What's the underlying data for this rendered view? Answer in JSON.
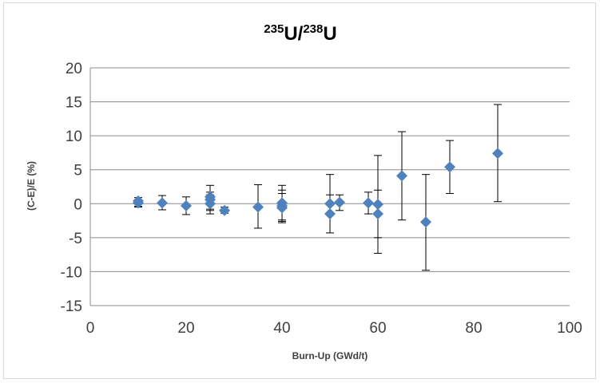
{
  "chart_data": {
    "type": "scatter",
    "title": {
      "sup1": "235",
      "base1": "U/",
      "sup2": "238",
      "base2": "U"
    },
    "xlabel": "Burn-Up (GWd/t)",
    "ylabel": "(C-E)/E (%)",
    "xlim": [
      0,
      100
    ],
    "ylim": [
      -15,
      20
    ],
    "xticks": [
      "0",
      "20",
      "40",
      "60",
      "80",
      "100"
    ],
    "yticks": [
      "20",
      "15",
      "10",
      "5",
      "0",
      "-5",
      "-10",
      "-15"
    ],
    "grid": "horizontal",
    "legend": "none",
    "marker": "diamond",
    "points": [
      {
        "x": 10,
        "y": 0.4,
        "err_low": -0.4,
        "err_high": 0.9
      },
      {
        "x": 10,
        "y": 0.1,
        "err_low": -0.5,
        "err_high": 0.6
      },
      {
        "x": 15,
        "y": 0.1,
        "err_low": -0.9,
        "err_high": 1.2
      },
      {
        "x": 20,
        "y": -0.3,
        "err_low": -1.6,
        "err_high": 1.0
      },
      {
        "x": 25,
        "y": 1.0,
        "err_low": -0.8,
        "err_high": 2.7
      },
      {
        "x": 25,
        "y": 0.6,
        "err_low": -1.0,
        "err_high": 1.7
      },
      {
        "x": 25,
        "y": 0.0,
        "err_low": -1.5,
        "err_high": 1.3
      },
      {
        "x": 28,
        "y": -1.0,
        "err_low": -1.4,
        "err_high": -0.5
      },
      {
        "x": 35,
        "y": -0.5,
        "err_low": -3.6,
        "err_high": 2.8
      },
      {
        "x": 40,
        "y": 0.1,
        "err_low": -2.4,
        "err_high": 2.7
      },
      {
        "x": 40,
        "y": -0.3,
        "err_low": -2.6,
        "err_high": 2.0
      },
      {
        "x": 40,
        "y": -0.6,
        "err_low": -2.8,
        "err_high": 1.5
      },
      {
        "x": 50,
        "y": 0.0,
        "err_low": -1.6,
        "err_high": 4.3
      },
      {
        "x": 50,
        "y": -1.5,
        "err_low": -4.3,
        "err_high": 1.3
      },
      {
        "x": 52,
        "y": 0.2,
        "err_low": -1.0,
        "err_high": 1.3
      },
      {
        "x": 58,
        "y": 0.1,
        "err_low": -1.5,
        "err_high": 1.7
      },
      {
        "x": 60,
        "y": -0.1,
        "err_low": -5.0,
        "err_high": 7.1
      },
      {
        "x": 60,
        "y": -1.5,
        "err_low": -7.3,
        "err_high": 2.0
      },
      {
        "x": 65,
        "y": 4.1,
        "err_low": -2.4,
        "err_high": 10.6
      },
      {
        "x": 70,
        "y": -2.7,
        "err_low": -9.8,
        "err_high": 4.3
      },
      {
        "x": 75,
        "y": 5.4,
        "err_low": 1.5,
        "err_high": 9.3
      },
      {
        "x": 85,
        "y": 7.4,
        "err_low": 0.3,
        "err_high": 14.6
      }
    ],
    "colors": {
      "marker": "#4f81bd",
      "errorbar": "#000000",
      "gridline": "#8c8c8c",
      "frame": "#d9d9d9",
      "tick_text": "#404040"
    }
  }
}
